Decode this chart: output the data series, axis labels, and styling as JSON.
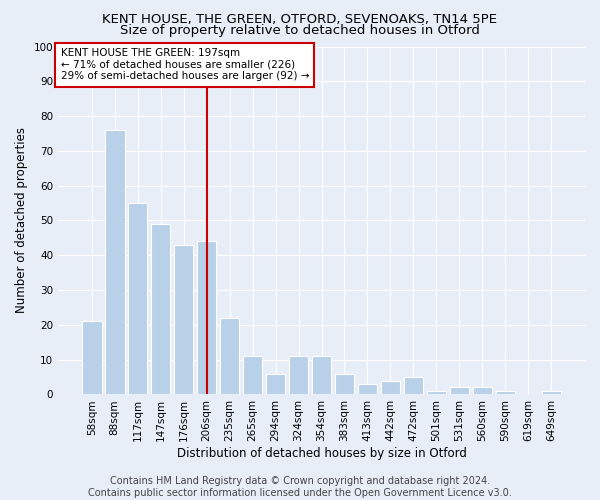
{
  "title": "KENT HOUSE, THE GREEN, OTFORD, SEVENOAKS, TN14 5PE",
  "subtitle": "Size of property relative to detached houses in Otford",
  "xlabel": "Distribution of detached houses by size in Otford",
  "ylabel": "Number of detached properties",
  "categories": [
    "58sqm",
    "88sqm",
    "117sqm",
    "147sqm",
    "176sqm",
    "206sqm",
    "235sqm",
    "265sqm",
    "294sqm",
    "324sqm",
    "354sqm",
    "383sqm",
    "413sqm",
    "442sqm",
    "472sqm",
    "501sqm",
    "531sqm",
    "560sqm",
    "590sqm",
    "619sqm",
    "649sqm"
  ],
  "values": [
    21,
    76,
    55,
    49,
    43,
    44,
    22,
    11,
    6,
    11,
    11,
    6,
    3,
    4,
    5,
    1,
    2,
    2,
    1,
    0,
    1
  ],
  "bar_color": "#b8d0e8",
  "bar_edgecolor": "#ffffff",
  "vline_x": 5,
  "marker_label": "KENT HOUSE THE GREEN: 197sqm",
  "annotation_line1": "← 71% of detached houses are smaller (226)",
  "annotation_line2": "29% of semi-detached houses are larger (92) →",
  "annotation_box_facecolor": "#ffffff",
  "annotation_box_edgecolor": "#cc0000",
  "vline_color": "#cc0000",
  "ylim": [
    0,
    100
  ],
  "yticks": [
    0,
    10,
    20,
    30,
    40,
    50,
    60,
    70,
    80,
    90,
    100
  ],
  "background_color": "#e8eef8",
  "grid_color": "#ffffff",
  "footer_line1": "Contains HM Land Registry data © Crown copyright and database right 2024.",
  "footer_line2": "Contains public sector information licensed under the Open Government Licence v3.0.",
  "title_fontsize": 9.5,
  "subtitle_fontsize": 9.5,
  "axis_label_fontsize": 8.5,
  "tick_fontsize": 7.5,
  "annotation_fontsize": 7.5,
  "footer_fontsize": 7
}
